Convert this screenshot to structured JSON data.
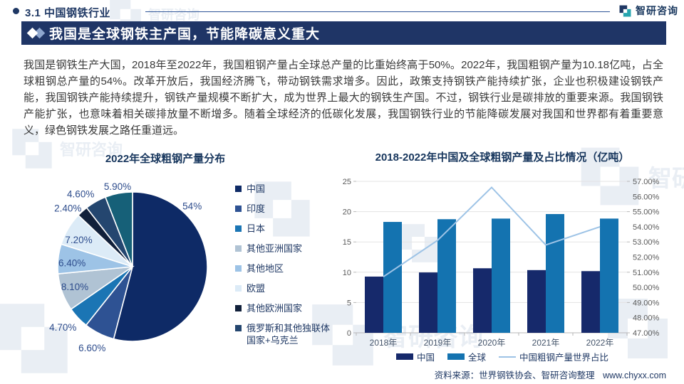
{
  "header": {
    "section_label": "3.1 中国钢铁行业",
    "logo_text": "智研咨询"
  },
  "banner": {
    "title": "我国是全球钢铁主产国，节能降碳意义重大"
  },
  "paragraph": "我国是钢铁生产大国，2018年至2022年，我国粗钢产量占全球总产量的比重始终高于50%。2022年，我国粗钢产量为10.18亿吨，占全球粗钢总产量的54%。改革开放后，我国经济腾飞，带动钢铁需求增多。因此，政策支持钢铁产能持续扩张，企业也积极建设钢铁产能，我国钢铁产能持续提升，钢铁产量规模不断扩大，成为世界上最大的钢铁生产国。不过，钢铁行业是碳排放的重要来源。我国钢铁产能扩张，也意味着相关碳排放量不断增多。随着全球经济的低碳化发展，我国钢铁行业的节能降碳发展对我国和世界都有着重要意义，绿色钢铁发展之路任重道远。",
  "icons": {
    "section-bullet": "filled-circle",
    "banner-marker": "double-diamond",
    "logo-mark": "zi-monogram"
  },
  "colors": {
    "brand_navy": "#1f3864",
    "brand_teal": "#27a5af",
    "banner_bg": "#1f3566",
    "china_bar": "#16296b",
    "global_bar": "#1473b0",
    "share_line": "#9dc3e6"
  },
  "watermark_text": "智研咨询",
  "chart_data": [
    {
      "type": "pie",
      "title": "2022年全球粗钢产量分布",
      "legend_position": "right",
      "slices": [
        {
          "name": "中国",
          "value": 54,
          "label": "54%",
          "color": "#0e2a66"
        },
        {
          "name": "印度",
          "value": 6.6,
          "label": "6.60%",
          "color": "#2e5293"
        },
        {
          "name": "日本",
          "value": 4.7,
          "label": "4.70%",
          "color": "#1b75b4"
        },
        {
          "name": "其他亚洲国家",
          "value": 8.1,
          "label": "8.10%",
          "color": "#b0c3d4"
        },
        {
          "name": "其他地区",
          "value": 6.4,
          "label": "6.40%",
          "color": "#9dc3e6"
        },
        {
          "name": "欧盟",
          "value": 7.2,
          "label": "7.20%",
          "color": "#dcebf7"
        },
        {
          "name": "其他欧洲国家",
          "value": 2.4,
          "label": "2.40%",
          "color": "#11203a"
        },
        {
          "name": "俄罗斯和其他独联体国家+乌克兰",
          "value": 4.6,
          "label": "4.60%",
          "color": "#24466f"
        },
        {
          "name": "",
          "value": 5.9,
          "label": "5.90%",
          "color": "#166078"
        }
      ],
      "label_layout": [
        {
          "angle": 44.7,
          "dist": 119
        },
        {
          "angle": 206.3,
          "dist": 128
        },
        {
          "angle": 228.7,
          "dist": 130
        },
        {
          "angle": 250.3,
          "dist": 86
        },
        {
          "angle": 273.0,
          "dist": 85
        },
        {
          "angle": 296.0,
          "dist": 84
        },
        {
          "angle": 312.0,
          "dist": 122
        },
        {
          "angle": 324.4,
          "dist": 125
        },
        {
          "angle": 349.4,
          "dist": 114
        }
      ]
    },
    {
      "type": "bar",
      "title": "2018-2022年中国及全球粗钢产量及占比情况（亿吨）",
      "categories": [
        "2018年",
        "2019年",
        "2020年",
        "2021年",
        "2022年"
      ],
      "series": [
        {
          "name": "中国",
          "kind": "bar",
          "axis": "left",
          "color": "#16296b",
          "values": [
            9.28,
            9.96,
            10.65,
            10.35,
            10.18
          ]
        },
        {
          "name": "全球",
          "kind": "bar",
          "axis": "left",
          "color": "#1473b0",
          "values": [
            18.3,
            18.75,
            18.85,
            19.6,
            18.85
          ]
        },
        {
          "name": "中国粗钢产量世界占比",
          "kind": "line",
          "axis": "right",
          "color": "#9dc3e6",
          "values": [
            50.7,
            53.1,
            56.6,
            52.8,
            54.0
          ]
        }
      ],
      "left_axis": {
        "min": 0,
        "max": 25,
        "step": 5,
        "ticks": [
          "0",
          "5",
          "10",
          "15",
          "20",
          "25"
        ]
      },
      "right_axis": {
        "min": 47,
        "max": 57,
        "step": 1,
        "ticks": [
          "47.00%",
          "48.00%",
          "49.00%",
          "50.00%",
          "51.00%",
          "52.00%",
          "53.00%",
          "54.00%",
          "55.00%",
          "56.00%",
          "57.00%"
        ]
      },
      "grid": true,
      "legend_position": "bottom"
    }
  ],
  "footer": {
    "source": "资料来源：世界钢铁协会、智研咨询整理",
    "website": "www.chyxx.com"
  }
}
